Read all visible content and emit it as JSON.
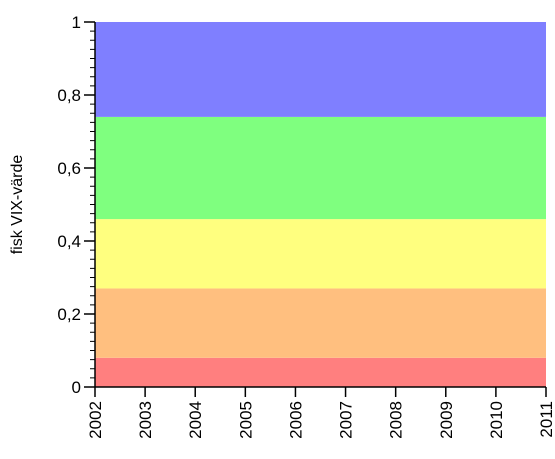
{
  "chart_data": {
    "type": "area",
    "xlabel": "",
    "ylabel": "fisk VIX-värde",
    "xlim": [
      2002,
      2011
    ],
    "ylim": [
      0,
      1
    ],
    "x_ticks": [
      2002,
      2003,
      2004,
      2005,
      2006,
      2007,
      2008,
      2009,
      2010,
      2011
    ],
    "x_tick_labels": [
      "2002",
      "2003",
      "2004",
      "2005",
      "2006",
      "2007",
      "2008",
      "2009",
      "2010",
      "2011"
    ],
    "y_ticks": [
      0,
      0.2,
      0.4,
      0.6,
      0.8,
      1
    ],
    "y_tick_labels": [
      "0",
      "0,2",
      "0,4",
      "0,6",
      "0,8",
      "1"
    ],
    "grid": false,
    "bands": [
      {
        "from": 0,
        "to": 0.08,
        "color": "#ff7f7f"
      },
      {
        "from": 0.08,
        "to": 0.27,
        "color": "#ffbf7f"
      },
      {
        "from": 0.27,
        "to": 0.46,
        "color": "#ffff7f"
      },
      {
        "from": 0.46,
        "to": 0.74,
        "color": "#7fff7f"
      },
      {
        "from": 0.74,
        "to": 1,
        "color": "#7f7fff"
      }
    ]
  }
}
